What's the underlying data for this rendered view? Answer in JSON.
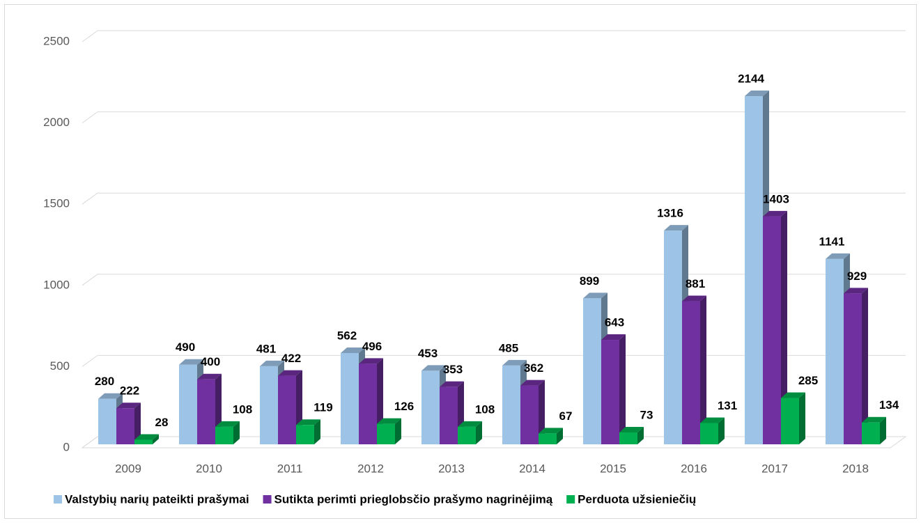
{
  "chart_data": {
    "type": "bar3d",
    "categories": [
      "2009",
      "2010",
      "2011",
      "2012",
      "2013",
      "2014",
      "2015",
      "2016",
      "2017",
      "2018"
    ],
    "series": [
      {
        "name": "Valstybių narių pateikti prašymai",
        "color": "#9dc3e6",
        "values": [
          280,
          490,
          481,
          562,
          453,
          485,
          899,
          1316,
          2144,
          1141
        ]
      },
      {
        "name": "Sutikta perimti prieglobsčio prašymo nagrinėjimą",
        "color": "#7030a0",
        "values": [
          222,
          400,
          422,
          496,
          353,
          362,
          643,
          881,
          1403,
          929
        ]
      },
      {
        "name": "Perduota užsieniečių",
        "color": "#00b050",
        "values": [
          28,
          108,
          119,
          126,
          108,
          67,
          73,
          131,
          285,
          134
        ]
      }
    ],
    "ylim": [
      0,
      2500
    ],
    "yticks": [
      0,
      500,
      1000,
      1500,
      2000,
      2500
    ],
    "grid": true,
    "legend": "bottom"
  }
}
